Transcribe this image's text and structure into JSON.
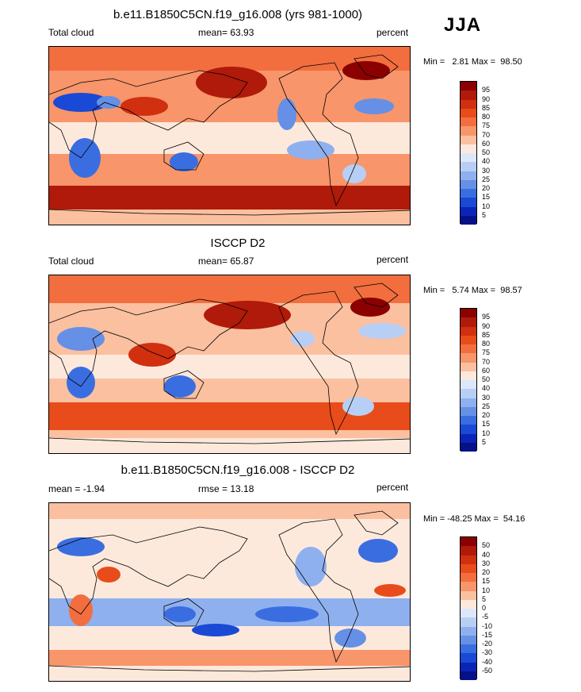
{
  "season": "JJA",
  "units": "percent",
  "panels": [
    {
      "title": "b.e11.B1850C5CN.f19_g16.008 (yrs 981-1000)",
      "left_label": "Total cloud",
      "mean_label": "mean=  63.93",
      "minmax": "Min =   2.81 Max =  98.50",
      "ticks": [
        "95",
        "90",
        "85",
        "80",
        "75",
        "70",
        "60",
        "50",
        "40",
        "30",
        "25",
        "20",
        "15",
        "10",
        "5"
      ],
      "colors": [
        "#8b0000",
        "#b01a0a",
        "#d03010",
        "#e84c1a",
        "#f26e3e",
        "#f8956a",
        "#fbc0a0",
        "#fde9dc",
        "#dce8fa",
        "#b8cff5",
        "#8fb0ee",
        "#6590e6",
        "#3a6ee0",
        "#1a49d6",
        "#0b24b8",
        "#061188"
      ]
    },
    {
      "title": "ISCCP D2",
      "left_label": "Total cloud",
      "mean_label": "mean=  65.87",
      "minmax": "Min =   5.74 Max =  98.57",
      "ticks": [
        "95",
        "90",
        "85",
        "80",
        "75",
        "70",
        "60",
        "50",
        "40",
        "30",
        "25",
        "20",
        "15",
        "10",
        "5"
      ],
      "colors": [
        "#8b0000",
        "#b01a0a",
        "#d03010",
        "#e84c1a",
        "#f26e3e",
        "#f8956a",
        "#fbc0a0",
        "#fde9dc",
        "#dce8fa",
        "#b8cff5",
        "#8fb0ee",
        "#6590e6",
        "#3a6ee0",
        "#1a49d6",
        "#0b24b8",
        "#061188"
      ]
    },
    {
      "title": "b.e11.B1850C5CN.f19_g16.008 - ISCCP D2",
      "left_label": "mean =  -1.94",
      "mean_label": "rmse =  13.18",
      "minmax": "Min = -48.25 Max =  54.16",
      "ticks": [
        "50",
        "40",
        "30",
        "20",
        "15",
        "10",
        "5",
        "0",
        "-5",
        "-10",
        "-15",
        "-20",
        "-30",
        "-40",
        "-50"
      ],
      "colors": [
        "#8b0000",
        "#b01a0a",
        "#d03010",
        "#e84c1a",
        "#f26e3e",
        "#f8956a",
        "#fbc0a0",
        "#fde9dc",
        "#dce8fa",
        "#b8cff5",
        "#8fb0ee",
        "#6590e6",
        "#3a6ee0",
        "#1a49d6",
        "#0b24b8",
        "#061188"
      ]
    }
  ]
}
